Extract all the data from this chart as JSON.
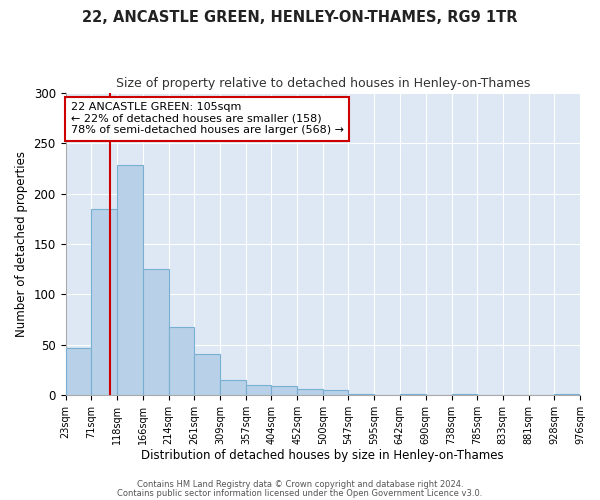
{
  "title": "22, ANCASTLE GREEN, HENLEY-ON-THAMES, RG9 1TR",
  "subtitle": "Size of property relative to detached houses in Henley-on-Thames",
  "xlabel": "Distribution of detached houses by size in Henley-on-Thames",
  "ylabel": "Number of detached properties",
  "bar_color": "#b8d0e8",
  "bar_edge_color": "#7aafd4",
  "bg_color": "#dde8f4",
  "grid_color": "#ffffff",
  "vline_color": "#cc0000",
  "vline_x": 105,
  "bin_edges": [
    23,
    71,
    118,
    166,
    214,
    261,
    309,
    357,
    404,
    452,
    500,
    547,
    595,
    642,
    690,
    738,
    785,
    833,
    881,
    928,
    976
  ],
  "bar_heights": [
    47,
    185,
    228,
    125,
    67,
    41,
    15,
    10,
    9,
    6,
    5,
    1,
    0,
    1,
    0,
    1,
    0,
    0,
    0,
    1
  ],
  "ylim": [
    0,
    300
  ],
  "yticks": [
    0,
    50,
    100,
    150,
    200,
    250,
    300
  ],
  "annotation_line1": "22 ANCASTLE GREEN: 105sqm",
  "annotation_line2": "← 22% of detached houses are smaller (158)",
  "annotation_line3": "78% of semi-detached houses are larger (568) →",
  "footer_line1": "Contains HM Land Registry data © Crown copyright and database right 2024.",
  "footer_line2": "Contains public sector information licensed under the Open Government Licence v3.0."
}
